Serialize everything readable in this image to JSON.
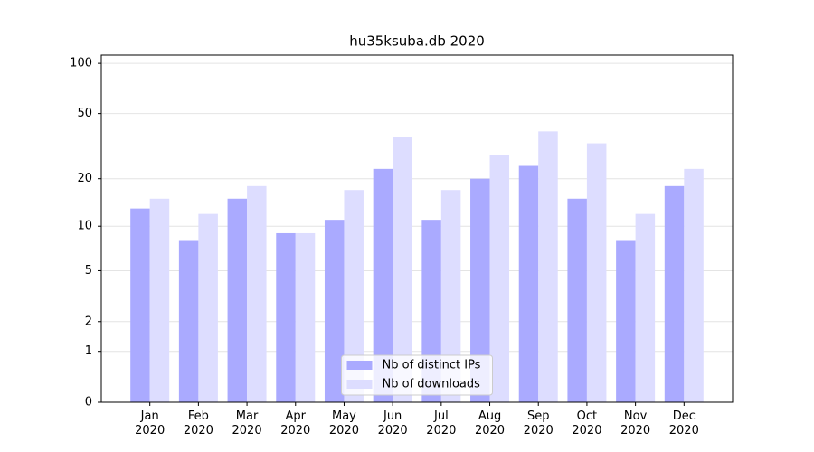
{
  "chart_data": {
    "type": "bar",
    "title": "hu35ksuba.db 2020",
    "categories": [
      "Jan 2020",
      "Feb 2020",
      "Mar 2020",
      "Apr 2020",
      "May 2020",
      "Jun 2020",
      "Jul 2020",
      "Aug 2020",
      "Sep 2020",
      "Oct 2020",
      "Nov 2020",
      "Dec 2020"
    ],
    "series": [
      {
        "name": "Nb of distinct IPs",
        "color": "#aaaaff",
        "values": [
          13,
          8,
          15,
          9,
          11,
          23,
          11,
          20,
          24,
          15,
          8,
          18
        ]
      },
      {
        "name": "Nb of downloads",
        "color": "#ddddff",
        "values": [
          15,
          12,
          18,
          9,
          17,
          36,
          17,
          28,
          39,
          33,
          12,
          23
        ]
      }
    ],
    "yscale": "log1p",
    "ylim": [
      0,
      112
    ],
    "yticks": [
      0,
      1,
      2,
      5,
      10,
      20,
      50,
      100
    ],
    "grid": true,
    "legend": "lower center"
  }
}
